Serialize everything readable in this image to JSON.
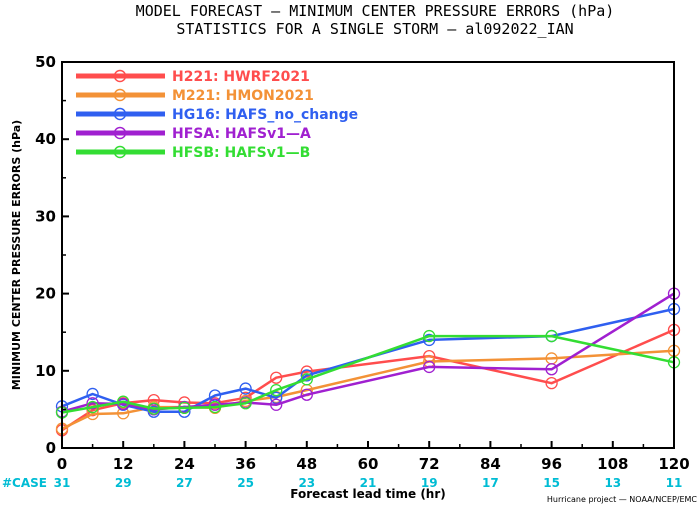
{
  "title_line1": "MODEL FORECAST — MINIMUM CENTER PRESSURE ERRORS (hPa)",
  "title_line2": "STATISTICS FOR A SINGLE STORM — al092022_IAN",
  "credit": "Hurricane project — NOAA/NCEP/EMC",
  "case_label": "#CASE",
  "case_color": "#00bcd4",
  "chart_data": {
    "type": "line",
    "xlabel": "Forecast lead time (hr)",
    "ylabel": "MINIMUM CENTER PRESSURE ERRORS (hPa)",
    "xlim": [
      0,
      120
    ],
    "ylim": [
      0,
      50
    ],
    "x_ticks": [
      0,
      12,
      24,
      36,
      48,
      60,
      72,
      84,
      96,
      108,
      120
    ],
    "y_ticks": [
      0,
      10,
      20,
      30,
      40,
      50
    ],
    "case_counts": [
      31,
      29,
      27,
      25,
      23,
      21,
      19,
      17,
      15,
      13,
      11
    ],
    "legend_position": "top-left",
    "series": [
      {
        "name": "H221: HWRF2021",
        "color": "#ff4d4d",
        "x": [
          0,
          6,
          12,
          18,
          24,
          30,
          36,
          42,
          48,
          72,
          96,
          120
        ],
        "y": [
          2.3,
          4.9,
          5.8,
          6.2,
          5.9,
          5.8,
          6.5,
          9.1,
          9.9,
          11.9,
          8.4,
          15.3
        ]
      },
      {
        "name": "M221: HMON2021",
        "color": "#f39237",
        "x": [
          0,
          6,
          12,
          18,
          24,
          30,
          36,
          42,
          48,
          72,
          96,
          120
        ],
        "y": [
          2.5,
          4.4,
          4.5,
          5.3,
          5.3,
          5.2,
          6.1,
          6.6,
          7.5,
          11.2,
          11.6,
          12.6
        ]
      },
      {
        "name": "HG16: HAFS_no_change",
        "color": "#2f5ff0",
        "x": [
          0,
          6,
          12,
          18,
          24,
          30,
          36,
          42,
          48,
          72,
          96,
          120
        ],
        "y": [
          5.4,
          7.0,
          5.6,
          4.7,
          4.7,
          6.8,
          7.7,
          6.5,
          9.4,
          14.0,
          14.5,
          18.0
        ]
      },
      {
        "name": "HFSA: HAFSv1—A",
        "color": "#a020d0",
        "x": [
          0,
          6,
          12,
          18,
          24,
          30,
          36,
          42,
          48,
          72,
          96,
          120
        ],
        "y": [
          4.7,
          5.8,
          5.7,
          5.0,
          5.3,
          5.6,
          5.9,
          5.6,
          6.9,
          10.5,
          10.2,
          20.0
        ]
      },
      {
        "name": "HFSB: HAFSv1—B",
        "color": "#33dd33",
        "x": [
          0,
          6,
          12,
          18,
          24,
          30,
          36,
          42,
          48,
          72,
          96,
          120
        ],
        "y": [
          4.6,
          5.3,
          6.0,
          5.1,
          5.2,
          5.3,
          5.8,
          7.5,
          8.9,
          14.5,
          14.5,
          11.1
        ]
      }
    ]
  }
}
